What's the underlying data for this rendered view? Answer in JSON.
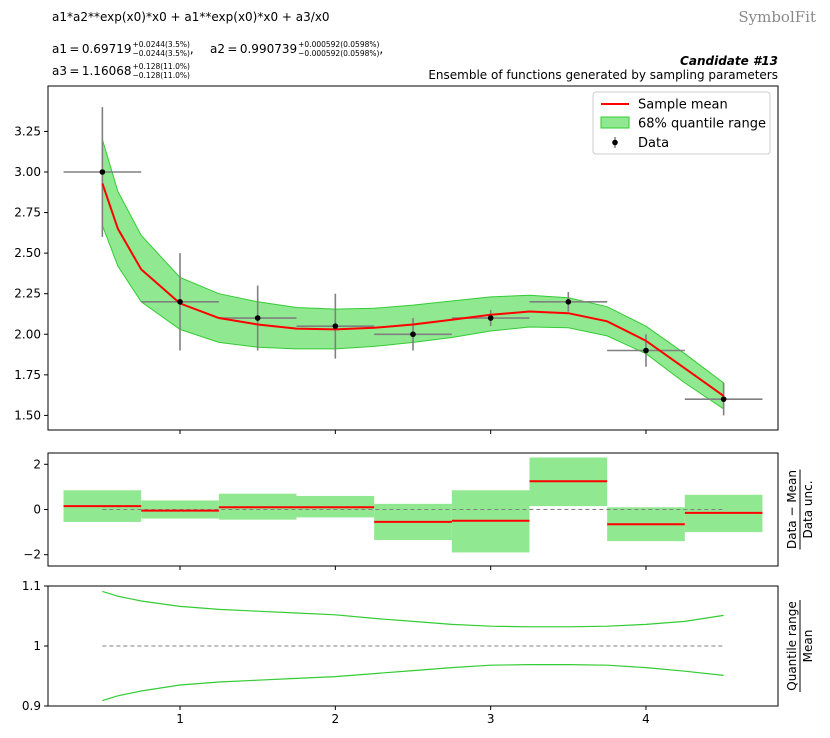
{
  "header": {
    "formula": "a1*a2**exp(x0)*x0 + a1**exp(x0)*x0 + a3/x0",
    "brand": "SymbolFit",
    "candidate": "Candidate #13",
    "subtitle": "Ensemble of functions generated by sampling parameters",
    "params": [
      {
        "name": "a1",
        "value": "0.69719",
        "plus": "+0.0244(3.5%)",
        "minus": "−0.0244(3.5%)",
        "sep": ","
      },
      {
        "name": "a2",
        "value": "0.990739",
        "plus": "+0.000592(0.0598%)",
        "minus": "−0.000592(0.0598%)",
        "sep": ","
      },
      {
        "name": "a3",
        "value": "1.16068",
        "plus": "+0.128(11.0%)",
        "minus": "−0.128(11.0%)",
        "sep": ""
      }
    ]
  },
  "chart_data": [
    {
      "type": "line",
      "panel": "main",
      "xlim": [
        0.15,
        4.85
      ],
      "ylim": [
        1.41,
        3.53
      ],
      "yticks": [
        1.5,
        1.75,
        2.0,
        2.25,
        2.5,
        2.75,
        3.0,
        3.25
      ],
      "ytick_labels": [
        "1.50",
        "1.75",
        "2.00",
        "2.25",
        "2.50",
        "2.75",
        "3.00",
        "3.25"
      ],
      "xticks": [
        1,
        2,
        3,
        4
      ],
      "legend": {
        "position": "top-right",
        "entries": [
          "Sample mean",
          "68% quantile range",
          "Data"
        ]
      },
      "colors": {
        "mean": "#ff0000",
        "band_fill": "#90e890",
        "band_edge": "#33cc33",
        "data": "#000000",
        "errorbar": "#808080"
      },
      "curve": {
        "x": [
          0.5,
          0.6,
          0.75,
          1.0,
          1.25,
          1.5,
          1.75,
          2.0,
          2.25,
          2.5,
          2.75,
          3.0,
          3.25,
          3.5,
          3.75,
          4.0,
          4.25,
          4.5
        ],
        "mean": [
          2.93,
          2.65,
          2.4,
          2.19,
          2.1,
          2.06,
          2.035,
          2.03,
          2.04,
          2.06,
          2.09,
          2.12,
          2.14,
          2.13,
          2.08,
          1.96,
          1.79,
          1.62
        ],
        "lower": [
          2.67,
          2.42,
          2.2,
          2.03,
          1.95,
          1.92,
          1.91,
          1.91,
          1.925,
          1.95,
          1.98,
          2.02,
          2.045,
          2.04,
          1.99,
          1.88,
          1.7,
          1.54
        ],
        "upper": [
          3.2,
          2.88,
          2.61,
          2.35,
          2.25,
          2.2,
          2.165,
          2.155,
          2.16,
          2.18,
          2.205,
          2.23,
          2.24,
          2.225,
          2.17,
          2.05,
          1.88,
          1.7
        ]
      },
      "data": {
        "x": [
          0.5,
          1.0,
          1.5,
          2.0,
          2.5,
          3.0,
          3.5,
          4.0,
          4.5
        ],
        "y": [
          3.0,
          2.2,
          2.1,
          2.05,
          2.0,
          2.1,
          2.2,
          1.9,
          1.6
        ],
        "xerr": [
          0.25,
          0.25,
          0.25,
          0.25,
          0.25,
          0.25,
          0.25,
          0.25,
          0.25
        ],
        "yerr": [
          0.4,
          0.3,
          0.2,
          0.2,
          0.1,
          0.05,
          0.06,
          0.1,
          0.1
        ]
      }
    },
    {
      "type": "bar",
      "panel": "residual",
      "ylabel": "Data − Mean / Data unc.",
      "xlim": [
        0.15,
        4.85
      ],
      "ylim": [
        -2.5,
        2.5
      ],
      "yticks": [
        -2,
        0,
        2
      ],
      "ytick_labels": [
        "−2",
        "0",
        "2"
      ],
      "reference_line": 0,
      "bins": [
        {
          "lo": 0.25,
          "hi": 0.75,
          "value": 0.15,
          "band": [
            -0.55,
            0.85
          ]
        },
        {
          "lo": 0.75,
          "hi": 1.25,
          "value": -0.05,
          "band": [
            -0.4,
            0.4
          ]
        },
        {
          "lo": 1.25,
          "hi": 1.75,
          "value": 0.1,
          "band": [
            -0.45,
            0.7
          ]
        },
        {
          "lo": 1.75,
          "hi": 2.25,
          "value": 0.1,
          "band": [
            -0.35,
            0.6
          ]
        },
        {
          "lo": 2.25,
          "hi": 2.75,
          "value": -0.55,
          "band": [
            -1.35,
            0.25
          ]
        },
        {
          "lo": 2.75,
          "hi": 3.25,
          "value": -0.5,
          "band": [
            -1.9,
            0.85
          ]
        },
        {
          "lo": 3.25,
          "hi": 3.75,
          "value": 1.25,
          "band": [
            0.15,
            2.3
          ]
        },
        {
          "lo": 3.75,
          "hi": 4.25,
          "value": -0.65,
          "band": [
            -1.4,
            0.1
          ]
        },
        {
          "lo": 4.25,
          "hi": 4.75,
          "value": -0.15,
          "band": [
            -1.0,
            0.65
          ]
        }
      ]
    },
    {
      "type": "line",
      "panel": "ratio",
      "ylabel": "Quantile range / Mean",
      "xlim": [
        0.15,
        4.85
      ],
      "ylim": [
        0.9,
        1.1
      ],
      "yticks": [
        0.9,
        1.0,
        1.1
      ],
      "ytick_labels": [
        "0.9",
        "1",
        "1.1"
      ],
      "xticks": [
        1,
        2,
        3,
        4
      ],
      "xtick_labels": [
        "1",
        "2",
        "3",
        "4"
      ],
      "reference_line": 1.0,
      "x": [
        0.5,
        0.6,
        0.75,
        1.0,
        1.25,
        1.5,
        1.75,
        2.0,
        2.25,
        2.5,
        2.75,
        3.0,
        3.25,
        3.5,
        3.75,
        4.0,
        4.25,
        4.5
      ],
      "upper": [
        1.091,
        1.083,
        1.075,
        1.066,
        1.061,
        1.058,
        1.055,
        1.052,
        1.046,
        1.041,
        1.036,
        1.033,
        1.032,
        1.032,
        1.033,
        1.036,
        1.041,
        1.051
      ],
      "lower": [
        0.909,
        0.917,
        0.925,
        0.935,
        0.94,
        0.943,
        0.946,
        0.949,
        0.954,
        0.959,
        0.964,
        0.968,
        0.969,
        0.969,
        0.968,
        0.964,
        0.958,
        0.951
      ]
    }
  ]
}
